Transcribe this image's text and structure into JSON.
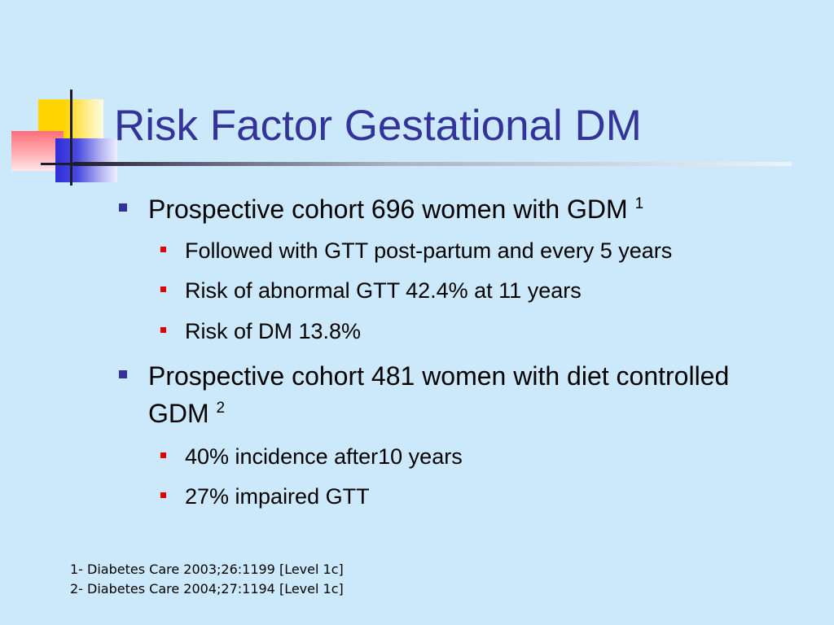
{
  "slide": {
    "title": "Risk Factor Gestational DM",
    "bullets": [
      {
        "text": "Prospective cohort 696 women with GDM",
        "sup": "1",
        "subitems": [
          "Followed with GTT post-partum and every 5 years",
          "Risk of abnormal GTT 42.4% at 11 years",
          "Risk of DM 13.8%"
        ]
      },
      {
        "text": "Prospective cohort 481 women with diet controlled GDM",
        "sup": "2",
        "subitems": [
          "40% incidence after10 years",
          "27% impaired GTT"
        ]
      }
    ],
    "references": [
      "1- Diabetes Care 2003;26:1199 [Level 1c]",
      "2- Diabetes Care 2004;27:1194 [Level 1c]"
    ]
  },
  "colors": {
    "background": "#cce9fb",
    "title": "#333399",
    "bullet_level1": "#333399",
    "bullet_level2": "#e00000"
  }
}
